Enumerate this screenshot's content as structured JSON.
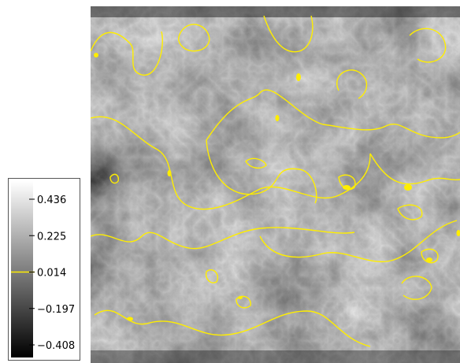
{
  "chart_data": {
    "type": "heatmap",
    "colormap": "grayscale",
    "contour_color": "#ffee00",
    "colorbar": {
      "position": "left",
      "ticks": [
        0.436,
        0.225,
        0.014,
        -0.197,
        -0.408
      ],
      "tick_labels": [
        "0.436",
        "0.225",
        "0.014",
        "−0.197",
        "−0.408"
      ],
      "range": [
        -0.408,
        0.436
      ],
      "contour_level": 0.014
    }
  }
}
